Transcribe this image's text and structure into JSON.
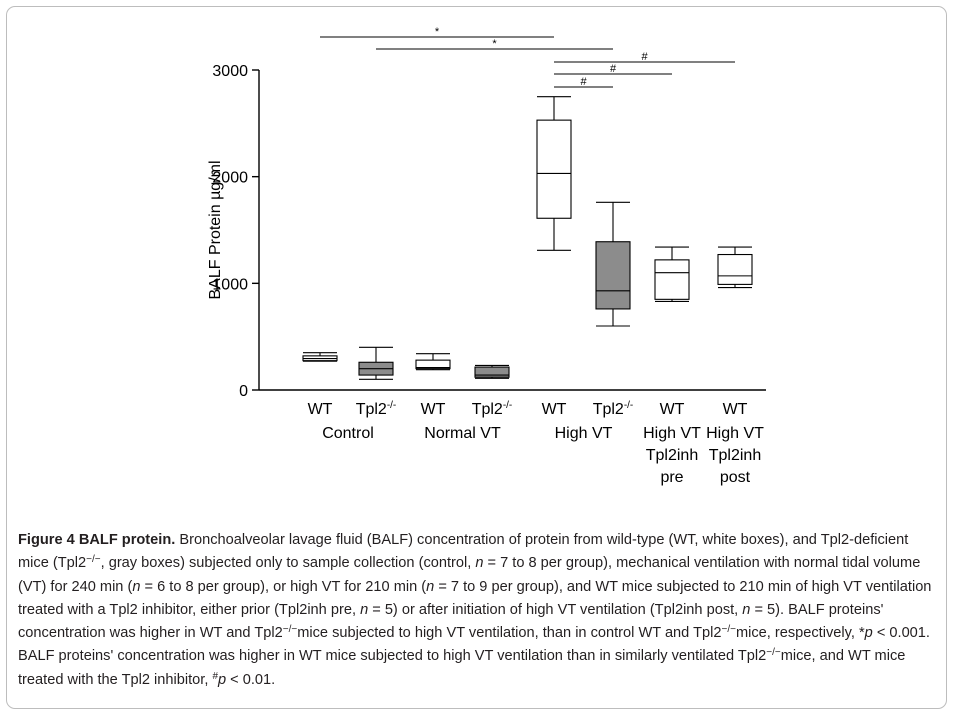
{
  "chart_data": {
    "type": "box",
    "ylabel": "BALF Protein µg/ml",
    "ylim": [
      0,
      3000
    ],
    "yticks": [
      0,
      1000,
      2000,
      3000
    ],
    "categories": [
      {
        "genotype": "WT",
        "group": [
          "Control"
        ],
        "color": "#ffffff"
      },
      {
        "genotype": "Tpl2-/-",
        "group": [],
        "color": "#8c8c8c"
      },
      {
        "genotype": "WT",
        "group": [
          "Normal VT"
        ],
        "color": "#ffffff"
      },
      {
        "genotype": "Tpl2-/-",
        "group": [],
        "color": "#8c8c8c"
      },
      {
        "genotype": "WT",
        "group": [
          "High VT"
        ],
        "color": "#ffffff"
      },
      {
        "genotype": "Tpl2-/-",
        "group": [],
        "color": "#8c8c8c"
      },
      {
        "genotype": "WT",
        "group": [
          "High VT",
          "Tpl2inh",
          "pre"
        ],
        "color": "#ffffff"
      },
      {
        "genotype": "WT",
        "group": [
          "High VT",
          "Tpl2inh",
          "post"
        ],
        "color": "#ffffff"
      }
    ],
    "control_label": "Control",
    "normal_label": "Normal VT",
    "high_label": "High VT",
    "boxes": [
      {
        "min": 270,
        "q1": 275,
        "median": 295,
        "q3": 320,
        "max": 350
      },
      {
        "min": 100,
        "q1": 140,
        "median": 200,
        "q3": 260,
        "max": 400
      },
      {
        "min": 190,
        "q1": 200,
        "median": 210,
        "q3": 280,
        "max": 340
      },
      {
        "min": 110,
        "q1": 120,
        "median": 140,
        "q3": 215,
        "max": 230
      },
      {
        "min": 1310,
        "q1": 1610,
        "median": 2030,
        "q3": 2530,
        "max": 2750
      },
      {
        "min": 600,
        "q1": 760,
        "median": 930,
        "q3": 1390,
        "max": 1760
      },
      {
        "min": 830,
        "q1": 850,
        "median": 1100,
        "q3": 1220,
        "max": 1340
      },
      {
        "min": 960,
        "q1": 990,
        "median": 1070,
        "q3": 1270,
        "max": 1340
      }
    ],
    "significance": [
      {
        "from": 0,
        "to": 4,
        "symbol": "*"
      },
      {
        "from": 1,
        "to": 5,
        "symbol": "*"
      },
      {
        "from": 4,
        "to": 7,
        "symbol": "#"
      },
      {
        "from": 4,
        "to": 6,
        "symbol": "#"
      },
      {
        "from": 4,
        "to": 5,
        "symbol": "#"
      }
    ]
  },
  "caption": {
    "figure": "Figure 4",
    "title": "BALF protein.",
    "segments": [
      {
        "t": " Bronchoalveolar lavage fluid (BALF) concentration of protein from wild-type (WT, white boxes), and Tpl2-deficient mice (Tpl2"
      },
      {
        "sup": "−/−"
      },
      {
        "t": ", gray boxes) subjected only to sample collection (control, "
      },
      {
        "i": "n"
      },
      {
        "t": " = 7 to 8 per group), mechanical ventilation with normal tidal volume (VT) for 240 min ("
      },
      {
        "i": "n"
      },
      {
        "t": " = 6 to 8 per group), or high VT for 210 min ("
      },
      {
        "i": "n"
      },
      {
        "t": " = 7 to 9 per group), and WT mice subjected to 210 min of high VT ventilation treated with a Tpl2 inhibitor, either prior (Tpl2inh pre, "
      },
      {
        "i": "n"
      },
      {
        "t": " = 5) or after initiation of high VT ventilation (Tpl2inh post, "
      },
      {
        "i": "n"
      },
      {
        "t": " = 5). BALF proteins' concentration was higher in WT and Tpl2"
      },
      {
        "sup": "−/−"
      },
      {
        "t": "mice subjected to high VT ventilation, than in control WT and Tpl2"
      },
      {
        "sup": "−/−"
      },
      {
        "t": "mice, respectively, *"
      },
      {
        "i": "p"
      },
      {
        "t": " < 0.001. BALF proteins' concentration was higher in WT mice subjected to high VT ventilation than in similarly ventilated Tpl2"
      },
      {
        "sup": "−/−"
      },
      {
        "t": "mice, and WT mice treated with the Tpl2 inhibitor, "
      },
      {
        "sup": "#"
      },
      {
        "i": "p"
      },
      {
        "t": " < 0.01."
      }
    ]
  }
}
